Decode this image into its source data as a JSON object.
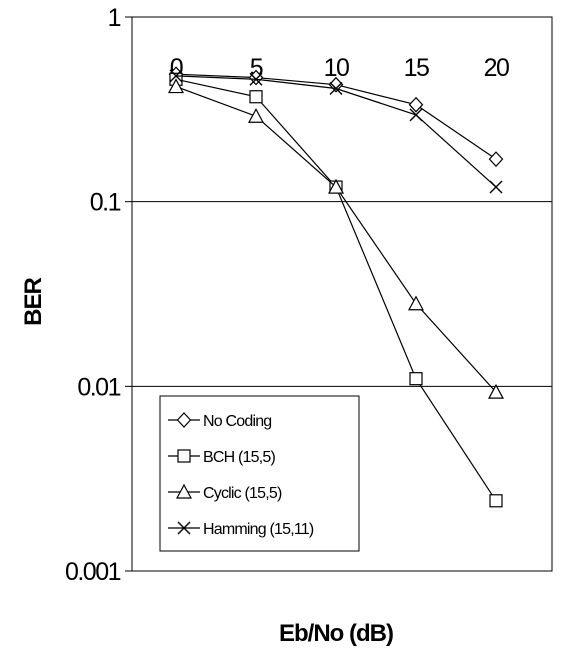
{
  "chart_data": {
    "type": "line",
    "title": "",
    "xlabel": "Eb/No (dB)",
    "ylabel": "BER",
    "x": [
      0,
      5,
      10,
      15,
      20
    ],
    "x_tick_labels": [
      "0",
      "5",
      "10",
      "15",
      "20"
    ],
    "xlim": [
      -2.75,
      23.5
    ],
    "y_scale": "log",
    "ylim": [
      0.001,
      1
    ],
    "y_tick_labels": [
      "1",
      "0.1",
      "0.01",
      "0.001"
    ],
    "y_ticks": [
      1,
      0.1,
      0.01,
      0.001
    ],
    "grid": "horizontal",
    "legend_position": "bottom-left",
    "series": [
      {
        "name": "No Coding",
        "marker": "diamond",
        "values": [
          0.49,
          0.47,
          0.43,
          0.335,
          0.17
        ]
      },
      {
        "name": "BCH (15,5)",
        "marker": "square",
        "values": [
          0.46,
          0.37,
          0.12,
          0.011,
          0.0024
        ]
      },
      {
        "name": "Cyclic (15,5)",
        "marker": "triangle",
        "values": [
          0.42,
          0.29,
          0.12,
          0.028,
          0.0093
        ]
      },
      {
        "name": "Hamming (15,11)",
        "marker": "x",
        "values": [
          0.48,
          0.46,
          0.41,
          0.295,
          0.12
        ]
      }
    ]
  }
}
